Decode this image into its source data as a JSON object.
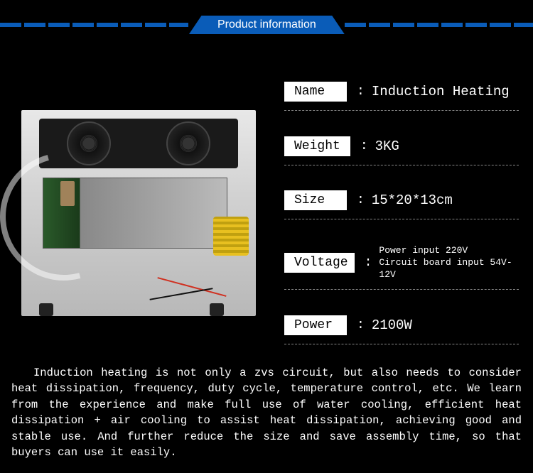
{
  "header": {
    "title": "Product information",
    "banner_bg": "#0a5cb8",
    "banner_fg": "#ffffff"
  },
  "specs": [
    {
      "label": "Name",
      "value": "Induction Heating",
      "small": false
    },
    {
      "label": "Weight",
      "value": "3KG",
      "small": false
    },
    {
      "label": "Size",
      "value": "15*20*13cm",
      "small": false
    },
    {
      "label": "Voltage",
      "value": "Power input 220V\nCircuit board input 54V-12V",
      "small": true
    },
    {
      "label": "Power",
      "value": "2100W",
      "small": false
    }
  ],
  "description": "Induction heating is not only a zvs circuit, but also needs to consider heat dissipation, frequency, duty cycle, temperature control, etc. We learn from the experience and make full use of water cooling, efficient heat dissipation + air cooling to assist heat dissipation, achieving good and stable use. And further reduce the size and save assembly time, so that buyers can use it easily.",
  "colors": {
    "page_bg": "#000000",
    "text_fg": "#ffffff",
    "label_bg": "#ffffff",
    "label_fg": "#000000",
    "dash_color": "#888888"
  }
}
